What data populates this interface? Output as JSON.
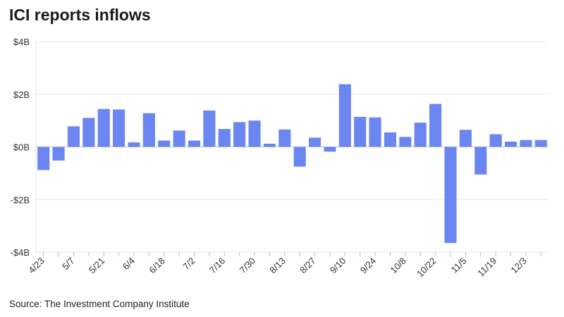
{
  "chart_data": {
    "type": "bar",
    "title": "ICI reports inflows",
    "source": "Source: The Investment Company Institute",
    "xlabel": "",
    "ylabel": "",
    "ylim": [
      -4,
      4
    ],
    "yticks": [
      4,
      2,
      0,
      -2,
      -4
    ],
    "ytick_labels": [
      "$4B",
      "$2B",
      "$0B",
      "-$2B",
      "-$4B"
    ],
    "grid": true,
    "bar_color": "#6b86f0",
    "x_tick_labels": [
      "4/23",
      "5/7",
      "5/21",
      "6/4",
      "6/18",
      "7/2",
      "7/16",
      "7/30",
      "8/13",
      "8/27",
      "9/10",
      "9/24",
      "10/8",
      "10/22",
      "11/5",
      "11/19",
      "12/3"
    ],
    "values": [
      -0.88,
      -0.52,
      0.78,
      1.1,
      1.44,
      1.42,
      0.17,
      1.28,
      0.24,
      0.62,
      0.24,
      1.38,
      0.68,
      0.94,
      1.0,
      0.12,
      0.66,
      -0.75,
      0.35,
      -0.18,
      2.38,
      1.14,
      1.12,
      0.55,
      0.38,
      0.92,
      1.63,
      -3.65,
      0.65,
      -1.05,
      0.48,
      0.2,
      0.26,
      0.26
    ]
  }
}
